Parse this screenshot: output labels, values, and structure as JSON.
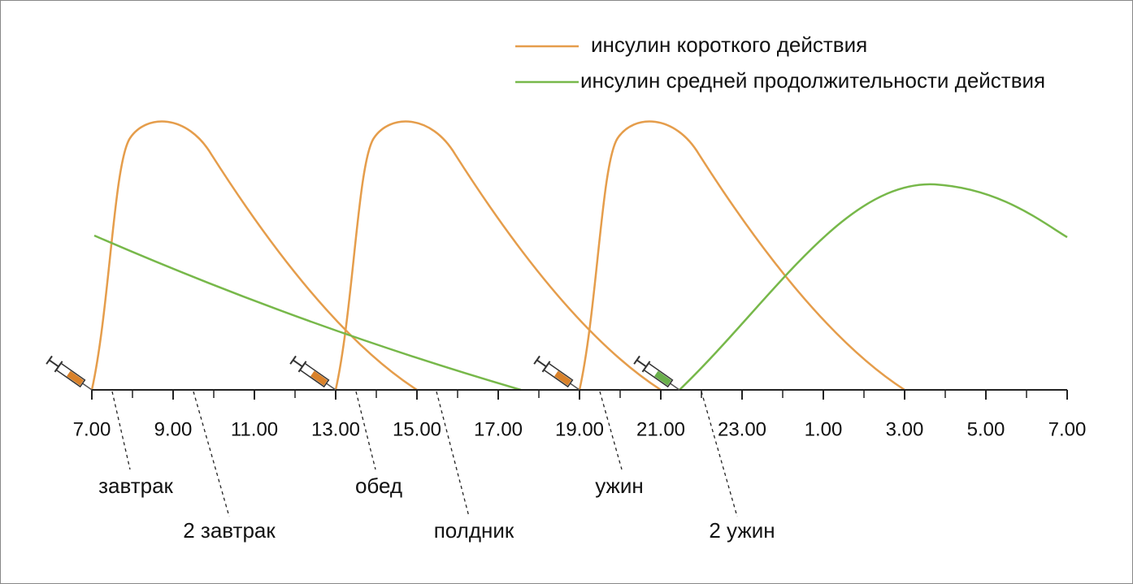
{
  "legend": [
    "инсулин короткого действия",
    "инсулин средней продолжительности действия"
  ],
  "axis": {
    "tick_labels": [
      "7.00",
      "9.00",
      "11.00",
      "13.00",
      "15.00",
      "17.00",
      "19.00",
      "21.00",
      "23.00",
      "1.00",
      "3.00",
      "5.00",
      "7.00"
    ]
  },
  "meals": [
    "завтрак",
    "2 завтрак",
    "обед",
    "полдник",
    "ужин",
    "2 ужин"
  ]
}
